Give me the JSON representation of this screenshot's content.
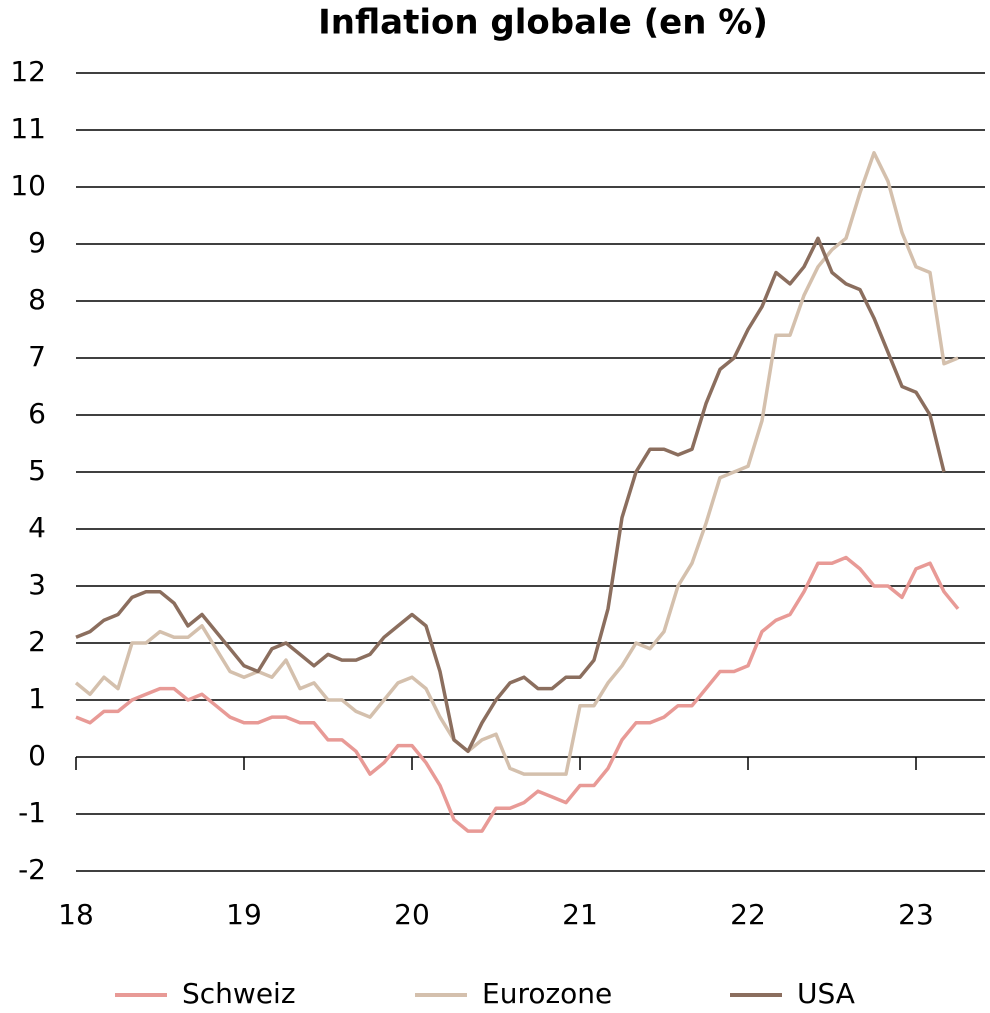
{
  "chart_data": {
    "type": "line",
    "title": "Inflation globale (en %)",
    "categories": [
      "18",
      null,
      null,
      null,
      null,
      null,
      null,
      null,
      null,
      null,
      null,
      null,
      "19",
      null,
      null,
      null,
      null,
      null,
      null,
      null,
      null,
      null,
      null,
      null,
      "20",
      null,
      null,
      null,
      null,
      null,
      null,
      null,
      null,
      null,
      null,
      null,
      "21",
      null,
      null,
      null,
      null,
      null,
      null,
      null,
      null,
      null,
      null,
      null,
      "22",
      null,
      null,
      null,
      null,
      null,
      null,
      null,
      null,
      null,
      null,
      null,
      "23",
      null,
      null,
      null
    ],
    "series": [
      {
        "name": "Schweiz",
        "color": "#e89a96",
        "values": [
          0.7,
          0.6,
          0.8,
          0.8,
          1.0,
          1.1,
          1.2,
          1.2,
          1.0,
          1.1,
          0.9,
          0.7,
          0.6,
          0.6,
          0.7,
          0.7,
          0.6,
          0.6,
          0.3,
          0.3,
          0.1,
          -0.3,
          -0.1,
          0.2,
          0.2,
          -0.1,
          -0.5,
          -1.1,
          -1.3,
          -1.3,
          -0.9,
          -0.9,
          -0.8,
          -0.6,
          -0.7,
          -0.8,
          -0.5,
          -0.5,
          -0.2,
          0.3,
          0.6,
          0.6,
          0.7,
          0.9,
          0.9,
          1.2,
          1.5,
          1.5,
          1.6,
          2.2,
          2.4,
          2.5,
          2.9,
          3.4,
          3.4,
          3.5,
          3.3,
          3.0,
          3.0,
          2.8,
          3.3,
          3.4,
          2.9,
          2.6
        ]
      },
      {
        "name": "Eurozone",
        "color": "#d4c0ad",
        "values": [
          1.3,
          1.1,
          1.4,
          1.2,
          2.0,
          2.0,
          2.2,
          2.1,
          2.1,
          2.3,
          1.9,
          1.5,
          1.4,
          1.5,
          1.4,
          1.7,
          1.2,
          1.3,
          1.0,
          1.0,
          0.8,
          0.7,
          1.0,
          1.3,
          1.4,
          1.2,
          0.7,
          0.3,
          0.1,
          0.3,
          0.4,
          -0.2,
          -0.3,
          -0.3,
          -0.3,
          -0.3,
          0.9,
          0.9,
          1.3,
          1.6,
          2.0,
          1.9,
          2.2,
          3.0,
          3.4,
          4.1,
          4.9,
          5.0,
          5.1,
          5.9,
          7.4,
          7.4,
          8.1,
          8.6,
          8.9,
          9.1,
          9.9,
          10.6,
          10.1,
          9.2,
          8.6,
          8.5,
          6.9,
          7.0
        ]
      },
      {
        "name": "USA",
        "color": "#8b6e5e",
        "values": [
          2.1,
          2.2,
          2.4,
          2.5,
          2.8,
          2.9,
          2.9,
          2.7,
          2.3,
          2.5,
          2.2,
          1.9,
          1.6,
          1.5,
          1.9,
          2.0,
          1.8,
          1.6,
          1.8,
          1.7,
          1.7,
          1.8,
          2.1,
          2.3,
          2.5,
          2.3,
          1.5,
          0.3,
          0.1,
          0.6,
          1.0,
          1.3,
          1.4,
          1.2,
          1.2,
          1.4,
          1.4,
          1.7,
          2.6,
          4.2,
          5.0,
          5.4,
          5.4,
          5.3,
          5.4,
          6.2,
          6.8,
          7.0,
          7.5,
          7.9,
          8.5,
          8.3,
          8.6,
          9.1,
          8.5,
          8.3,
          8.2,
          7.7,
          7.1,
          6.5,
          6.4,
          6.0,
          5.0,
          null
        ]
      }
    ],
    "ylim": [
      -2,
      12
    ],
    "yticks": [
      -2,
      -1,
      0,
      1,
      2,
      3,
      4,
      5,
      6,
      7,
      8,
      9,
      10,
      11,
      12
    ],
    "grid": true,
    "legend": "bottom"
  }
}
